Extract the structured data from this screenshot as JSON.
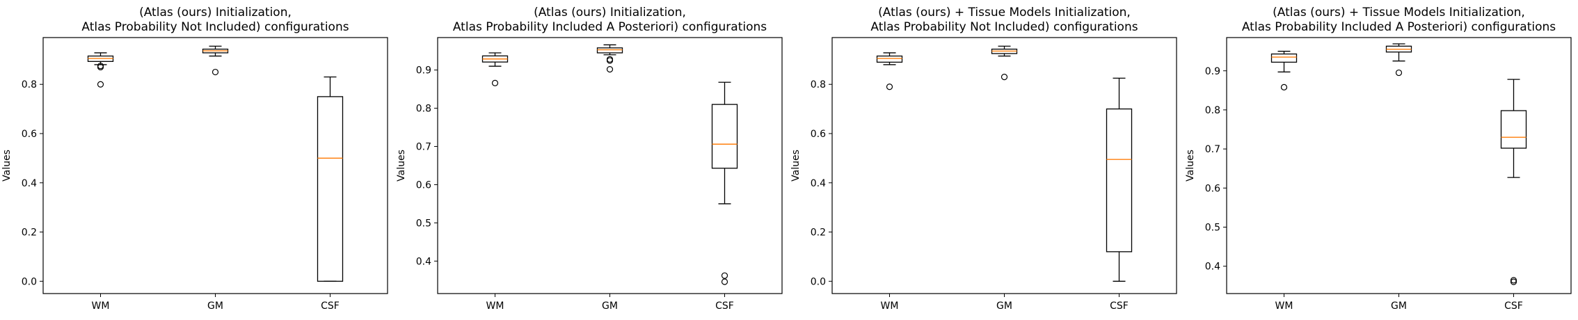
{
  "chart_data": [
    {
      "type": "box",
      "title_lines": [
        "(Atlas (ours) Initialization,",
        "Atlas Probability Not Included) configurations"
      ],
      "xlabel": "",
      "ylabel": "Values",
      "ylim": [
        -0.05,
        0.99
      ],
      "yticks": [
        0.0,
        0.2,
        0.4,
        0.6,
        0.8
      ],
      "ytick_labels": [
        "0.0",
        "0.2",
        "0.4",
        "0.6",
        "0.8"
      ],
      "categories": [
        "WM",
        "GM",
        "CSF"
      ],
      "boxes": [
        {
          "whislo": 0.88,
          "q1": 0.893,
          "med": 0.905,
          "q3": 0.915,
          "whishi": 0.928,
          "fliers": [
            0.875,
            0.87,
            0.8
          ]
        },
        {
          "whislo": 0.915,
          "q1": 0.928,
          "med": 0.936,
          "q3": 0.943,
          "whishi": 0.955,
          "fliers": [
            0.85
          ]
        },
        {
          "whislo": 0.0,
          "q1": 0.0,
          "med": 0.5,
          "q3": 0.75,
          "whishi": 0.83,
          "fliers": []
        }
      ]
    },
    {
      "type": "box",
      "title_lines": [
        "(Atlas (ours) Initialization,",
        "Atlas Probability Included A Posteriori) configurations"
      ],
      "xlabel": "",
      "ylabel": "Values",
      "ylim": [
        0.315,
        0.985
      ],
      "yticks": [
        0.4,
        0.5,
        0.6,
        0.7,
        0.8,
        0.9
      ],
      "ytick_labels": [
        "0.4",
        "0.5",
        "0.6",
        "0.7",
        "0.8",
        "0.9"
      ],
      "categories": [
        "WM",
        "GM",
        "CSF"
      ],
      "boxes": [
        {
          "whislo": 0.91,
          "q1": 0.921,
          "med": 0.929,
          "q3": 0.937,
          "whishi": 0.945,
          "fliers": [
            0.866
          ]
        },
        {
          "whislo": 0.94,
          "q1": 0.945,
          "med": 0.953,
          "q3": 0.958,
          "whishi": 0.966,
          "fliers": [
            0.928,
            0.925,
            0.902
          ]
        },
        {
          "whislo": 0.55,
          "q1": 0.643,
          "med": 0.706,
          "q3": 0.81,
          "whishi": 0.868,
          "fliers": [
            0.362,
            0.346
          ]
        }
      ]
    },
    {
      "type": "box",
      "title_lines": [
        "(Atlas (ours) + Tissue Models Initialization,",
        "Atlas Probability Not Included) configurations"
      ],
      "xlabel": "",
      "ylabel": "Values",
      "ylim": [
        -0.05,
        0.99
      ],
      "yticks": [
        0.0,
        0.2,
        0.4,
        0.6,
        0.8
      ],
      "ytick_labels": [
        "0.0",
        "0.2",
        "0.4",
        "0.6",
        "0.8"
      ],
      "categories": [
        "WM",
        "GM",
        "CSF"
      ],
      "boxes": [
        {
          "whislo": 0.88,
          "q1": 0.89,
          "med": 0.905,
          "q3": 0.915,
          "whishi": 0.928,
          "fliers": [
            0.79
          ]
        },
        {
          "whislo": 0.915,
          "q1": 0.925,
          "med": 0.935,
          "q3": 0.943,
          "whishi": 0.955,
          "fliers": [
            0.83
          ]
        },
        {
          "whislo": 0.0,
          "q1": 0.12,
          "med": 0.495,
          "q3": 0.7,
          "whishi": 0.825,
          "fliers": []
        }
      ]
    },
    {
      "type": "box",
      "title_lines": [
        "(Atlas (ours) + Tissue Models Initialization,",
        "Atlas Probability Included A Posteriori) configurations"
      ],
      "xlabel": "",
      "ylabel": "Values",
      "ylim": [
        0.33,
        0.985
      ],
      "yticks": [
        0.4,
        0.5,
        0.6,
        0.7,
        0.8,
        0.9
      ],
      "ytick_labels": [
        "0.4",
        "0.5",
        "0.6",
        "0.7",
        "0.8",
        "0.9"
      ],
      "categories": [
        "WM",
        "GM",
        "CSF"
      ],
      "boxes": [
        {
          "whislo": 0.897,
          "q1": 0.922,
          "med": 0.935,
          "q3": 0.943,
          "whishi": 0.95,
          "fliers": [
            0.858
          ]
        },
        {
          "whislo": 0.925,
          "q1": 0.948,
          "med": 0.955,
          "q3": 0.963,
          "whishi": 0.969,
          "fliers": [
            0.895
          ]
        },
        {
          "whislo": 0.627,
          "q1": 0.702,
          "med": 0.73,
          "q3": 0.798,
          "whishi": 0.878,
          "fliers": [
            0.364,
            0.36
          ]
        }
      ]
    }
  ],
  "colors": {
    "box": "#000000",
    "median": "#ff7f0e",
    "background": "#ffffff"
  }
}
